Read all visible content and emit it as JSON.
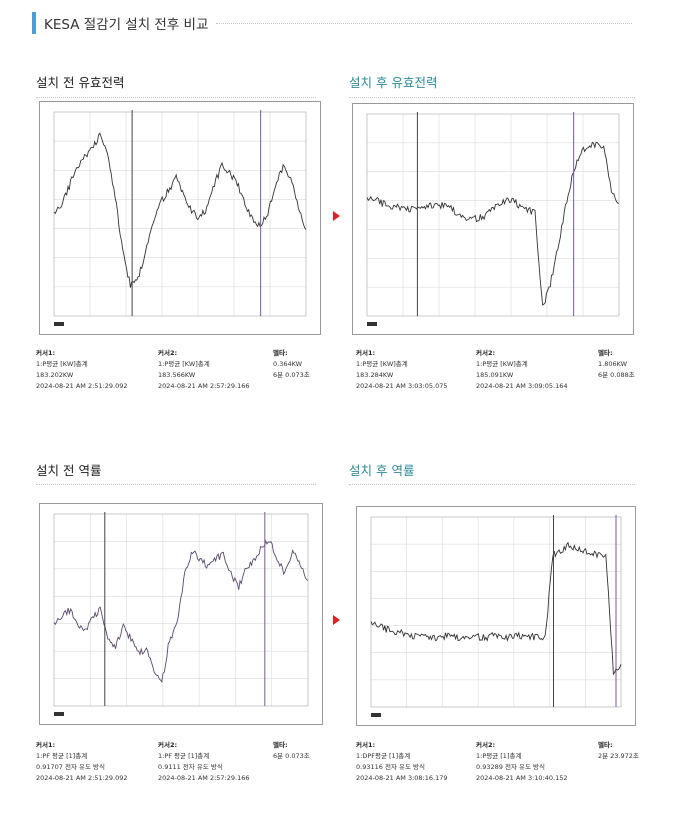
{
  "header": {
    "title": "KESA 절감기 설치 전후 비교",
    "accent_color": "#4a9fd6"
  },
  "panels": [
    {
      "title": "설치 전 유효전력",
      "title_color": "#222222",
      "cursor1": {
        "label": "커서1:",
        "lines": [
          "1:P평균 [KW]총계",
          "183.202KW",
          "2024-08-21 AM 2:51:29.092"
        ]
      },
      "cursor2": {
        "label": "커서2:",
        "lines": [
          "1:P평균 [KW]총계",
          "183.566KW",
          "2024-08-21 AM 2:57:29.166"
        ]
      },
      "delta": {
        "label": "델타:",
        "lines": [
          "0.364KW",
          "6분 0.073초"
        ]
      }
    },
    {
      "title": "설치 후 유효전력",
      "title_color": "#2f8a96",
      "cursor1": {
        "label": "커서1:",
        "lines": [
          "1:P평균 [KW]총계",
          "183.284KW",
          "2024-08-21 AM 3:03:05.075"
        ]
      },
      "cursor2": {
        "label": "커서2:",
        "lines": [
          "1:P평균 [KW]총계",
          "185.091KW",
          "2024-08-21 AM 3:09:05.164"
        ]
      },
      "delta": {
        "label": "델타:",
        "lines": [
          "1.806KW",
          "6분 0.088초"
        ]
      }
    },
    {
      "title": "설치 전 역률",
      "title_color": "#222222",
      "cursor1": {
        "label": "커서1:",
        "lines": [
          "1:PF 평균 [1]총계",
          "0.91707 전자 유도 방식",
          "2024-08-21 AM 2:51:29.092"
        ]
      },
      "cursor2": {
        "label": "커서2:",
        "lines": [
          "1:PF 평균 [1]총계",
          "0.9111 전자 유도 방식",
          "2024-08-21 AM 2:57:29.166"
        ]
      },
      "delta": {
        "label": "델타:",
        "lines": [
          "6분 0.073초"
        ]
      }
    },
    {
      "title": "설치 후 역률",
      "title_color": "#2f8a96",
      "cursor1": {
        "label": "커서1:",
        "lines": [
          "1:DPF평균 [1]총계",
          "0.93116 전자 유도 방식",
          "2024-08-21 AM 3:08:16.179"
        ]
      },
      "cursor2": {
        "label": "커서2:",
        "lines": [
          "1:P평균 [1]총계",
          "0.93289 전자 유도 방식",
          "2024-08-21 AM 3:10:40.152"
        ]
      },
      "delta": {
        "label": "델타:",
        "lines": [
          "2분 23.972초"
        ]
      }
    }
  ],
  "chart_data": [
    {
      "type": "line",
      "title": "설치 전 유효전력",
      "series": [
        {
          "values": [
            183.05,
            183.12,
            183.28,
            183.45,
            183.52,
            183.6,
            183.7,
            183.55,
            183.2,
            182.75,
            182.45,
            182.5,
            182.75,
            183.0,
            183.15,
            183.25,
            183.35,
            183.2,
            183.08,
            183.0,
            183.1,
            183.3,
            183.45,
            183.4,
            183.3,
            183.15,
            183.0,
            182.95,
            183.05,
            183.3,
            183.45,
            183.35,
            183.1,
            182.92
          ]
        }
      ],
      "ylim": [
        182.2,
        183.9
      ],
      "cursors": [
        0.31,
        0.82
      ]
    },
    {
      "type": "line",
      "title": "설치 후 유효전력",
      "series": [
        {
          "values": [
            183.5,
            183.5,
            183.45,
            183.42,
            183.4,
            183.38,
            183.37,
            183.38,
            183.42,
            183.44,
            183.42,
            183.38,
            183.32,
            183.27,
            183.25,
            183.27,
            183.33,
            183.42,
            183.48,
            183.48,
            183.42,
            183.37,
            183.32,
            182.12,
            182.4,
            182.9,
            183.4,
            183.85,
            184.1,
            184.2,
            184.22,
            184.18,
            183.6,
            183.45
          ]
        }
      ],
      "ylim": [
        182.0,
        184.6
      ],
      "cursors": [
        0.2,
        0.82
      ]
    },
    {
      "type": "line",
      "title": "설치 전 역률",
      "series": [
        {
          "values": [
            0.9085,
            0.909,
            0.9095,
            0.9087,
            0.908,
            0.909,
            0.9095,
            0.9075,
            0.907,
            0.9085,
            0.9075,
            0.9065,
            0.907,
            0.9055,
            0.9045,
            0.9075,
            0.9085,
            0.912,
            0.9135,
            0.9128,
            0.9125,
            0.913,
            0.9132,
            0.912,
            0.911,
            0.9125,
            0.9128,
            0.9138,
            0.9142,
            0.913,
            0.912,
            0.9135,
            0.9125,
            0.9115
          ]
        }
      ],
      "ylim": [
        0.903,
        0.916
      ],
      "cursors": [
        0.2,
        0.83
      ]
    },
    {
      "type": "line",
      "title": "설치 후 역률",
      "series": [
        {
          "values": [
            0.9128,
            0.9125,
            0.9122,
            0.912,
            0.9118,
            0.9115,
            0.9114,
            0.9115,
            0.9113,
            0.9114,
            0.9115,
            0.9113,
            0.9114,
            0.9115,
            0.9114,
            0.9113,
            0.9115,
            0.9114,
            0.9113,
            0.9114,
            0.9115,
            0.9114,
            0.9113,
            0.9114,
            0.92,
            0.9205,
            0.921,
            0.9207,
            0.9204,
            0.9203,
            0.9201,
            0.92,
            0.9075,
            0.9085
          ]
        }
      ],
      "ylim": [
        0.904,
        0.924
      ],
      "cursors": [
        0.73,
        0.98
      ]
    }
  ]
}
